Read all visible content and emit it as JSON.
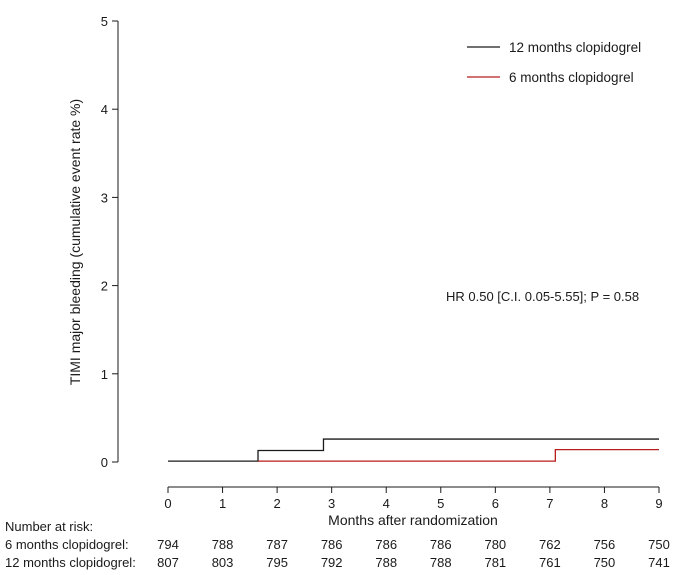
{
  "chart_data": {
    "type": "line",
    "subtype": "kaplan-meier step",
    "xlabel": "Months after randomization",
    "ylabel": "TIMI major bleeding (cumulative event rate %)",
    "xlim": [
      0,
      9
    ],
    "ylim": [
      0,
      5
    ],
    "x_ticks": [
      0,
      1,
      2,
      3,
      4,
      5,
      6,
      7,
      8,
      9
    ],
    "y_ticks": [
      0,
      1,
      2,
      3,
      4,
      5
    ],
    "legend_position": "top-right",
    "series": [
      {
        "name": "12 months clopidogrel",
        "color": "#1a1a1a",
        "x": [
          0,
          1.65,
          1.65,
          2.85,
          2.85,
          9
        ],
        "y": [
          0.01,
          0.01,
          0.13,
          0.13,
          0.26,
          0.26
        ]
      },
      {
        "name": "6 months clopidogrel",
        "color": "#b81c1c",
        "x": [
          1.65,
          7.1,
          7.1,
          9
        ],
        "y": [
          0.01,
          0.01,
          0.14,
          0.14
        ]
      }
    ],
    "annotation": "HR 0.50 [C.I. 0.05-5.55]; P = 0.58",
    "risk_table": {
      "title": "Number at risk:",
      "rows": [
        {
          "label": "6 months clopidogrel:",
          "values": [
            794,
            788,
            787,
            786,
            786,
            786,
            780,
            762,
            756,
            750
          ]
        },
        {
          "label": "12 months clopidogrel:",
          "values": [
            807,
            803,
            795,
            792,
            788,
            788,
            781,
            761,
            750,
            741
          ]
        }
      ]
    }
  }
}
